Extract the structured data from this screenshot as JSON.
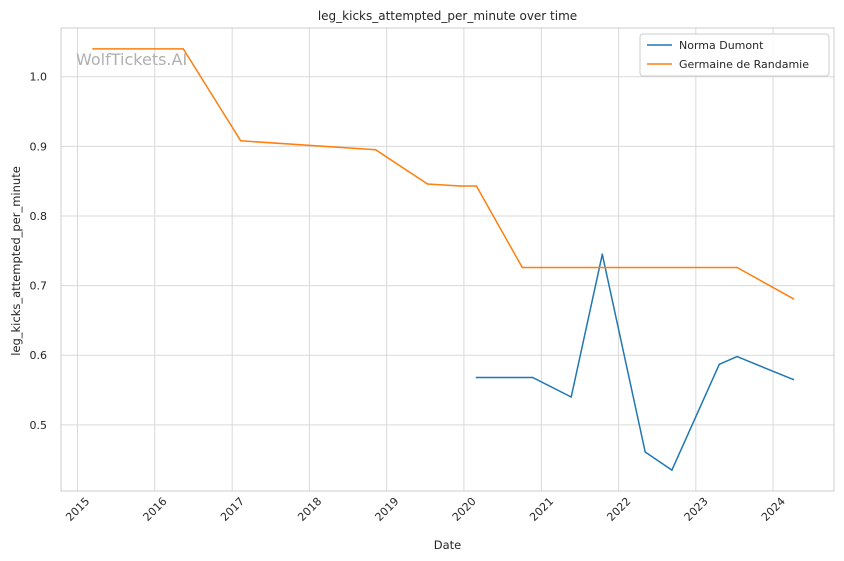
{
  "chart_data": {
    "type": "line",
    "title": "leg_kicks_attempted_per_minute over time",
    "xlabel": "Date",
    "ylabel": "leg_kicks_attempted_per_minute",
    "watermark": "WolfTickets.AI",
    "xlim": [
      "2014-10-15",
      "2024-10-15"
    ],
    "ylim": [
      0.405,
      1.07
    ],
    "x_ticks": [
      "2015",
      "2016",
      "2017",
      "2018",
      "2019",
      "2020",
      "2021",
      "2022",
      "2023",
      "2024"
    ],
    "y_ticks": [
      "0.5",
      "0.6",
      "0.7",
      "0.8",
      "0.9",
      "1.0"
    ],
    "grid": true,
    "legend_position": "top-right",
    "series": [
      {
        "name": "Norma Dumont",
        "color": "#1f77b4",
        "x": [
          "2020-02-29",
          "2020-11-21",
          "2021-05-22",
          "2021-10-16",
          "2022-05-07",
          "2022-09-10",
          "2023-04-22",
          "2023-07-15",
          "2024-04-06"
        ],
        "y": [
          0.568,
          0.568,
          0.54,
          0.745,
          0.461,
          0.435,
          0.587,
          0.598,
          0.565
        ]
      },
      {
        "name": "Germaine de Randamie",
        "color": "#ff7f0e",
        "x": [
          "2015-03-15",
          "2016-05-15",
          "2017-02-10",
          "2018-11-10",
          "2019-07-13",
          "2019-12-14",
          "2020-02-29",
          "2020-10-03",
          "2023-07-15",
          "2024-04-06"
        ],
        "y": [
          1.04,
          1.04,
          0.908,
          0.895,
          0.846,
          0.843,
          0.843,
          0.726,
          0.726,
          0.681
        ]
      }
    ]
  }
}
